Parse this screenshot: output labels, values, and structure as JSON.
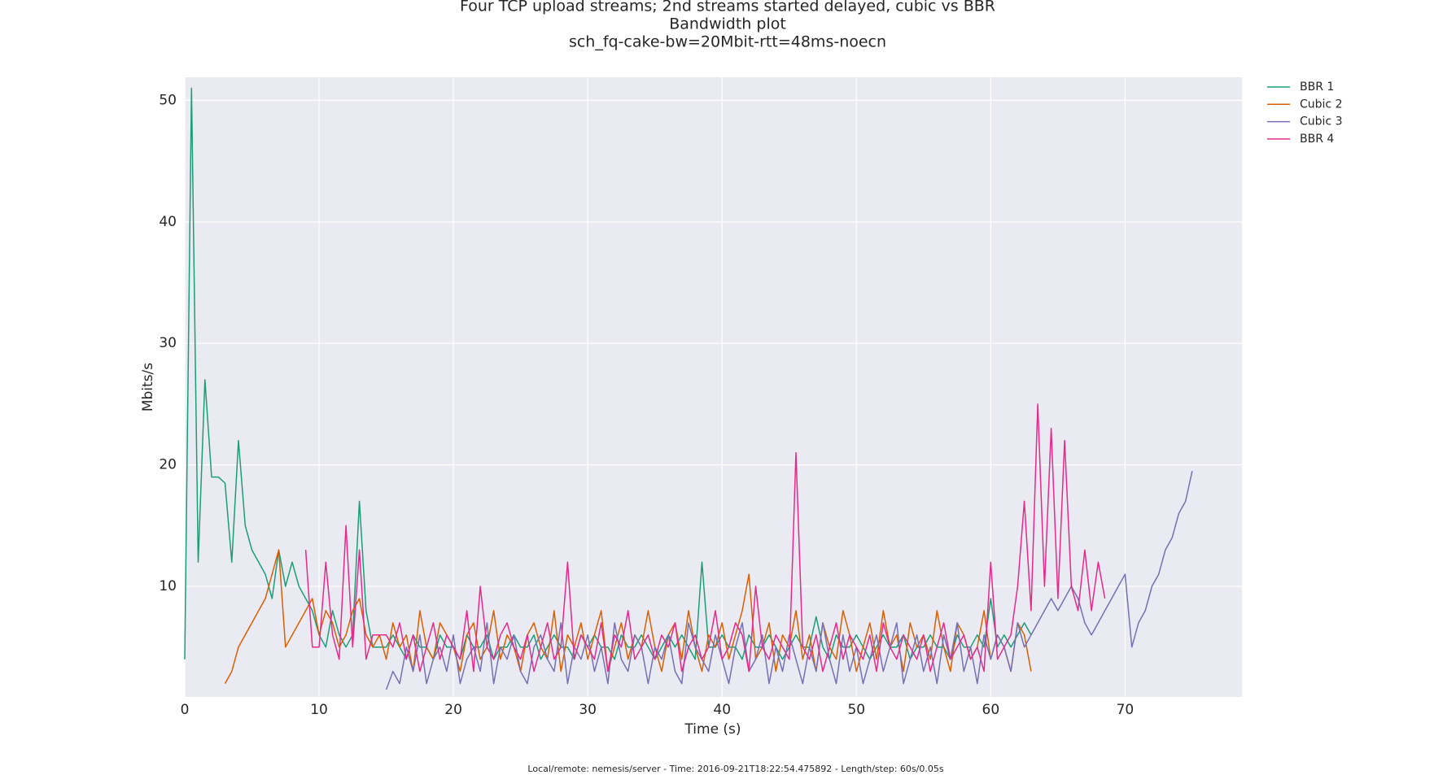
{
  "chart_data": {
    "type": "line",
    "title": [
      "Four TCP upload streams; 2nd streams started delayed, cubic vs BBR",
      "Bandwidth plot",
      "sch_fq-cake-bw=20Mbit-rtt=48ms-noecn"
    ],
    "xlabel": "Time (s)",
    "ylabel": "Mbits/s",
    "footer": "Local/remote: nemesis/server - Time: 2016-09-21T18:22:54.475892 - Length/step: 60s/0.05s",
    "xlim": [
      0,
      78.7
    ],
    "ylim": [
      0.9,
      51.9
    ],
    "xticks": [
      0,
      10,
      20,
      30,
      40,
      50,
      60,
      70
    ],
    "yticks": [
      10,
      20,
      30,
      40,
      50
    ],
    "grid": true,
    "legend": "upper right outside",
    "x": [
      0,
      0.5,
      1,
      1.5,
      2,
      2.5,
      3,
      3.5,
      4,
      4.5,
      5,
      5.5,
      6,
      6.5,
      7,
      7.5,
      8,
      8.5,
      9,
      9.5,
      10,
      10.5,
      11,
      11.5,
      12,
      12.5,
      13,
      13.5,
      14,
      14.5,
      15,
      15.5,
      16,
      16.5,
      17,
      17.5,
      18,
      18.5,
      19,
      19.5,
      20,
      20.5,
      21,
      21.5,
      22,
      22.5,
      23,
      23.5,
      24,
      24.5,
      25,
      25.5,
      26,
      26.5,
      27,
      27.5,
      28,
      28.5,
      29,
      29.5,
      30,
      30.5,
      31,
      31.5,
      32,
      32.5,
      33,
      33.5,
      34,
      34.5,
      35,
      35.5,
      36,
      36.5,
      37,
      37.5,
      38,
      38.5,
      39,
      39.5,
      40,
      40.5,
      41,
      41.5,
      42,
      42.5,
      43,
      43.5,
      44,
      44.5,
      45,
      45.5,
      46,
      46.5,
      47,
      47.5,
      48,
      48.5,
      49,
      49.5,
      50,
      50.5,
      51,
      51.5,
      52,
      52.5,
      53,
      53.5,
      54,
      54.5,
      55,
      55.5,
      56,
      56.5,
      57,
      57.5,
      58,
      58.5,
      59,
      59.5,
      60,
      60.5,
      61,
      61.5,
      62,
      62.5,
      63,
      63.5,
      64,
      64.5,
      65,
      65.5,
      66,
      66.5,
      67,
      67.5,
      68,
      68.5,
      69,
      69.5,
      70,
      70.5,
      71,
      71.5,
      72,
      72.5,
      73,
      73.5,
      74,
      74.5,
      75
    ],
    "series": [
      {
        "name": "BBR 1",
        "color": "#1b9e77",
        "values": [
          4,
          51,
          12,
          27,
          19,
          19,
          18.5,
          12,
          22,
          15,
          13,
          12,
          11,
          9,
          13,
          10,
          12,
          10,
          9,
          8,
          6,
          5,
          8,
          6,
          5,
          6,
          17,
          8,
          5,
          5,
          5,
          6,
          5,
          4,
          6,
          5,
          5,
          4,
          6,
          5,
          5,
          4,
          6,
          5,
          5,
          6,
          4,
          5,
          5,
          6,
          5,
          5,
          6,
          4,
          5,
          6,
          5,
          5,
          4,
          6,
          5,
          6,
          5,
          5,
          4,
          6,
          5,
          5,
          6,
          5,
          4,
          5,
          6,
          5,
          6,
          5,
          4,
          12,
          5,
          5,
          6,
          5,
          5,
          4,
          6,
          5,
          5,
          6,
          5,
          4,
          5,
          6,
          5,
          5,
          7.5,
          5,
          4,
          6,
          5,
          5,
          6,
          5,
          4,
          5,
          6,
          5,
          5,
          6,
          4,
          5,
          5,
          6,
          5,
          5,
          4,
          6,
          5,
          5,
          6,
          5,
          9,
          5,
          6,
          5,
          6,
          7,
          6,
          null,
          null,
          null,
          null,
          null,
          null,
          null,
          null,
          null,
          null,
          null,
          null,
          null,
          null,
          null,
          null,
          null,
          null,
          null,
          null,
          null,
          null,
          null,
          null
        ]
      },
      {
        "name": "Cubic 2",
        "color": "#d95f02",
        "values": [
          null,
          null,
          null,
          null,
          null,
          null,
          2,
          3,
          5,
          6,
          7,
          8,
          9,
          11,
          13,
          5,
          6,
          7,
          8,
          9,
          6,
          8,
          7,
          5,
          6,
          8,
          9,
          6,
          5,
          6,
          4,
          7,
          5,
          6,
          3,
          8,
          5,
          4,
          7,
          6,
          5,
          3,
          6,
          7,
          4,
          5,
          8,
          4,
          6,
          5,
          3,
          6,
          7,
          5,
          4,
          8,
          3,
          6,
          5,
          7,
          4,
          6,
          8,
          3,
          5,
          7,
          4,
          6,
          5,
          8,
          5,
          3,
          6,
          7,
          4,
          8,
          5,
          3,
          6,
          5,
          7,
          4,
          6,
          8,
          11,
          4,
          5,
          7,
          3,
          6,
          5,
          8,
          4,
          6,
          3,
          7,
          5,
          4,
          8,
          6,
          3,
          5,
          7,
          4,
          8,
          5,
          6,
          3,
          7,
          5,
          6,
          4,
          8,
          5,
          3,
          7,
          6,
          4,
          5,
          8,
          4,
          6,
          5,
          3,
          7,
          6,
          3,
          null,
          null,
          null,
          null,
          null,
          null,
          null,
          null,
          null,
          null,
          null,
          null,
          null,
          null,
          null,
          null,
          null,
          null,
          null,
          null,
          null,
          null,
          null,
          null
        ]
      },
      {
        "name": "Cubic 3",
        "color": "#7570b3",
        "values": [
          null,
          null,
          null,
          null,
          null,
          null,
          null,
          null,
          null,
          null,
          null,
          null,
          null,
          null,
          null,
          null,
          null,
          null,
          null,
          null,
          null,
          null,
          null,
          null,
          null,
          null,
          null,
          null,
          null,
          null,
          1.5,
          3,
          2,
          5,
          3,
          6,
          2,
          4,
          5,
          3,
          6,
          2,
          4,
          5,
          3,
          7,
          2,
          5,
          4,
          6,
          3,
          2,
          5,
          6,
          4,
          3,
          7,
          2,
          5,
          4,
          6,
          3,
          5,
          2,
          7,
          4,
          3,
          6,
          5,
          2,
          5,
          4,
          6,
          3,
          2,
          7,
          5,
          4,
          3,
          6,
          4,
          2,
          5,
          7,
          3,
          4,
          6,
          2,
          5,
          3,
          6,
          4,
          2,
          5,
          3,
          7,
          4,
          2,
          6,
          3,
          5,
          2,
          4,
          6,
          3,
          5,
          7,
          2,
          4,
          6,
          3,
          5,
          2,
          6,
          4,
          7,
          3,
          5,
          2,
          6,
          4,
          6,
          5,
          3,
          7,
          5,
          6,
          7,
          8,
          9,
          8,
          9,
          10,
          9,
          7,
          6,
          7,
          8,
          9,
          10,
          11,
          5,
          7,
          8,
          10,
          11,
          13,
          14,
          16,
          17,
          19.5
        ]
      },
      {
        "name": "BBR 4",
        "color": "#e7298a",
        "values": [
          null,
          null,
          null,
          null,
          null,
          null,
          null,
          null,
          null,
          null,
          null,
          null,
          null,
          null,
          null,
          null,
          null,
          null,
          13,
          5,
          5,
          12,
          6,
          4,
          15,
          5,
          13,
          4,
          6,
          6,
          6,
          5,
          7,
          4,
          6,
          3,
          5,
          7,
          4,
          6,
          5,
          4,
          8,
          3,
          10,
          5,
          4,
          6,
          7,
          5,
          4,
          6,
          3,
          5,
          7,
          4,
          5,
          12,
          4,
          6,
          5,
          4,
          7,
          3,
          6,
          5,
          8,
          4,
          5,
          6,
          4,
          6,
          5,
          7,
          3,
          5,
          6,
          4,
          5,
          8,
          4,
          5,
          7,
          6,
          3,
          10,
          5,
          4,
          6,
          5,
          4,
          21,
          5,
          4,
          6,
          3,
          5,
          7,
          4,
          6,
          5,
          4,
          6,
          3,
          7,
          5,
          4,
          6,
          5,
          4,
          6,
          3,
          5,
          7,
          4,
          5,
          6,
          4,
          5,
          3,
          12,
          4,
          5,
          6,
          10,
          17,
          8,
          25,
          10,
          23,
          9,
          22,
          10,
          8,
          13,
          8,
          12,
          9,
          null,
          null,
          null,
          null,
          null,
          null,
          null,
          null,
          null,
          null,
          null,
          null,
          null
        ]
      }
    ]
  }
}
